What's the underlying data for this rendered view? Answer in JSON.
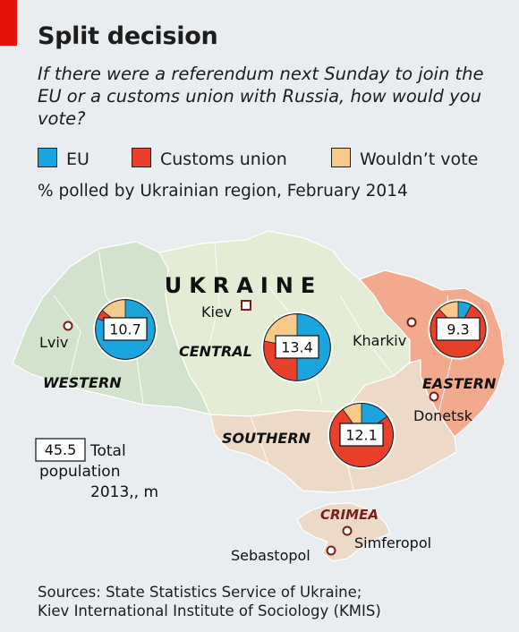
{
  "header": {
    "title": "Split decision",
    "subtitle": "If there were a referendum next Sunday to join the EU or a customs union with Russia, how would you vote?",
    "units": "% polled by Ukrainian region, February 2014"
  },
  "legend": [
    {
      "label": "EU",
      "color": "#1aa5de"
    },
    {
      "label": "Customs union",
      "color": "#e8402a"
    },
    {
      "label": "Wouldn’t vote",
      "color": "#f7c98a"
    }
  ],
  "map": {
    "country_label": "UKRAINE",
    "region_colors": {
      "western": "#d3e2cc",
      "central": "#e5ecd6",
      "southern": "#ecd9c8",
      "eastern": "#f2a98e"
    },
    "cities": [
      "Kiev",
      "Lviv",
      "Kharkiv",
      "Donetsk",
      "Simferopol",
      "Sebastopol"
    ],
    "crimea_label": "CRIMEA",
    "size_key": {
      "value": "45.5",
      "label": "Total population 2013, m"
    }
  },
  "chart_data": {
    "type": "pie",
    "title": "Split decision",
    "subtitle": "If there were a referendum next Sunday to join the EU or a customs union with Russia, how would you vote?",
    "units": "% polled by Ukrainian region, February 2014",
    "categories": [
      "EU",
      "Customs union",
      "Wouldn’t vote"
    ],
    "colors": [
      "#1aa5de",
      "#e8402a",
      "#f7c98a"
    ],
    "size_measure": "Total population 2013, m",
    "size_reference": 45.5,
    "series": [
      {
        "name": "WESTERN",
        "population": 10.7,
        "values": [
          81,
          5,
          14
        ]
      },
      {
        "name": "CENTRAL",
        "population": 13.4,
        "values": [
          50,
          28,
          22
        ]
      },
      {
        "name": "EASTERN",
        "population": 9.3,
        "values": [
          8,
          80,
          12
        ]
      },
      {
        "name": "SOUTHERN",
        "population": 12.1,
        "values": [
          15,
          75,
          10
        ]
      }
    ]
  },
  "source": {
    "line1": "Sources: State Statistics Service of Ukraine;",
    "line2": "Kiev International Institute of Sociology (KMIS)"
  }
}
